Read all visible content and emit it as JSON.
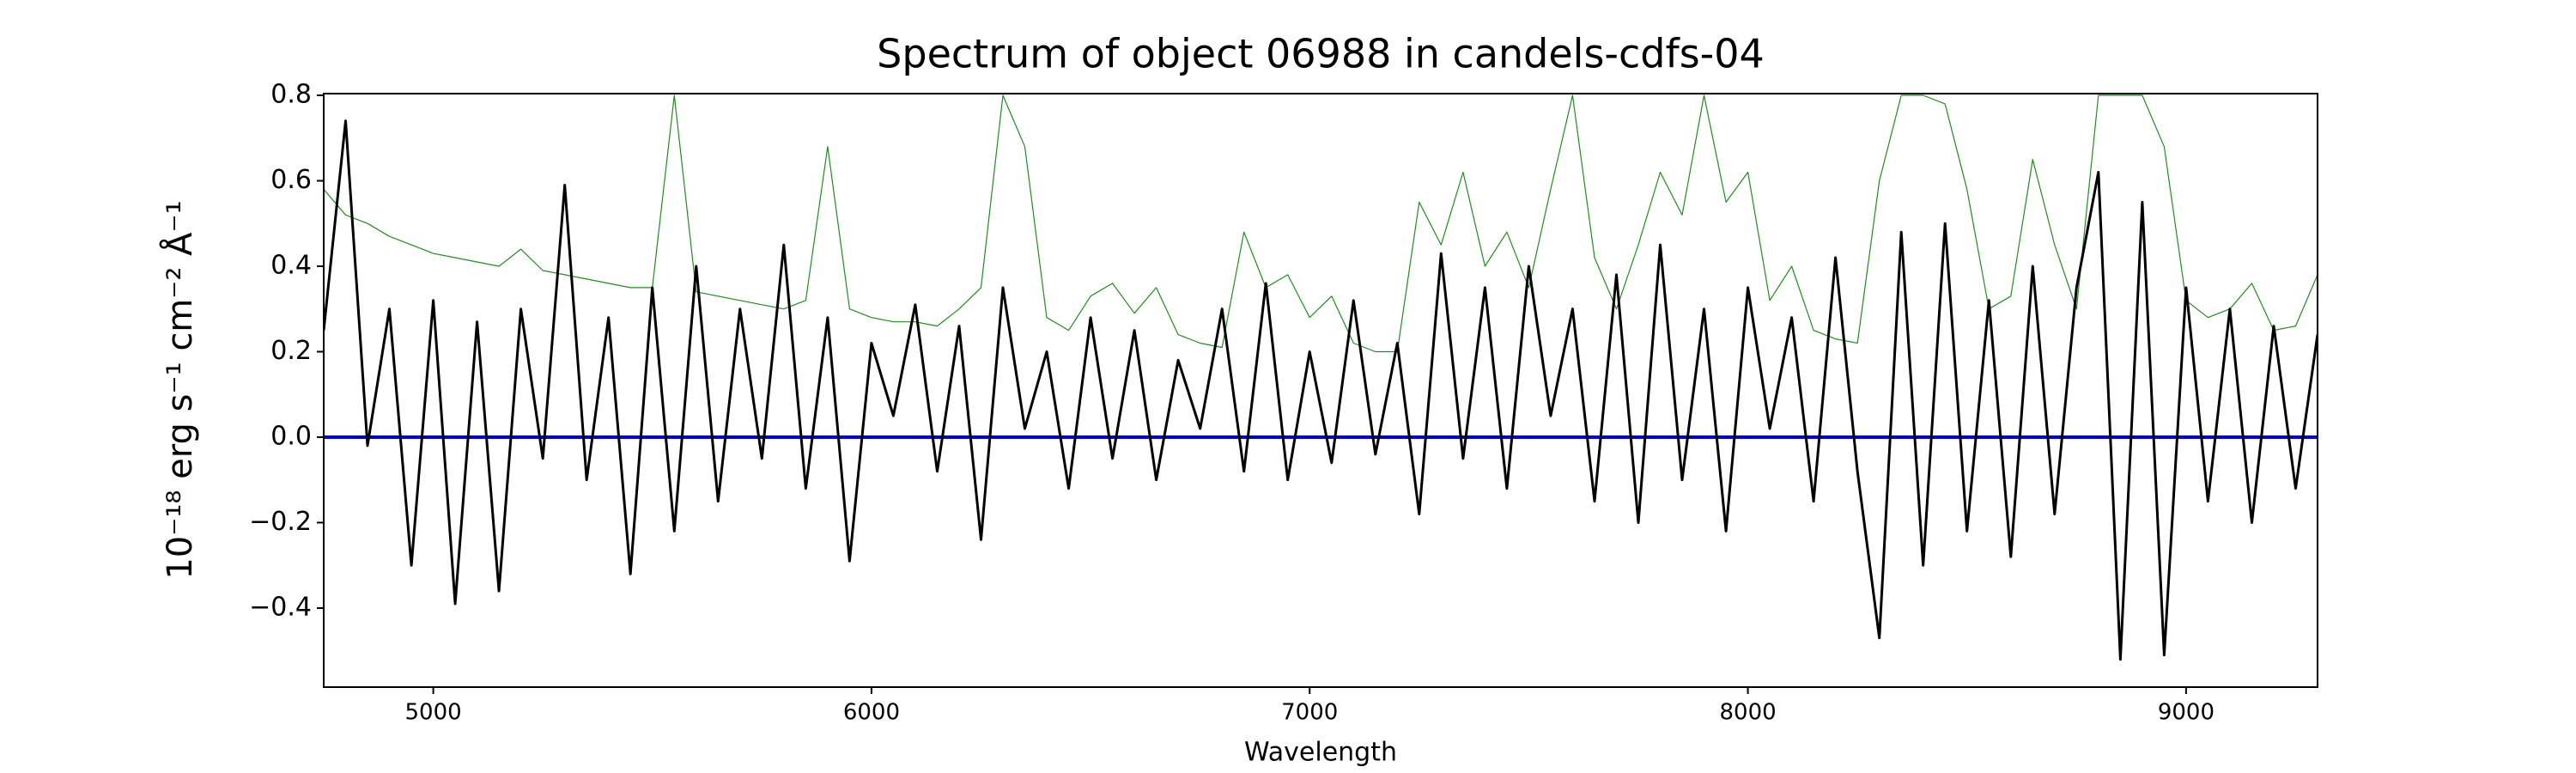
{
  "chart_data": {
    "type": "line",
    "title": "Spectrum of object 06988 in candels-cdfs-04",
    "xlabel": "Wavelength",
    "ylabel": "10⁻¹⁸ erg s⁻¹ cm⁻² Å⁻¹",
    "xlim": [
      4750,
      9300
    ],
    "ylim": [
      -0.585,
      0.804
    ],
    "xticks": [
      5000,
      6000,
      7000,
      8000,
      9000
    ],
    "yticks": [
      {
        "value": -0.4,
        "label": "−0.4"
      },
      {
        "value": -0.2,
        "label": "−0.2"
      },
      {
        "value": 0,
        "label": "0.0"
      },
      0.2,
      0.4,
      0.6,
      0.8
    ],
    "hline": 0,
    "hline_color": "#0000cc",
    "x": [
      4750,
      4800,
      4850,
      4900,
      4950,
      5000,
      5050,
      5100,
      5150,
      5200,
      5250,
      5300,
      5350,
      5400,
      5450,
      5500,
      5550,
      5600,
      5650,
      5700,
      5750,
      5800,
      5850,
      5900,
      5950,
      6000,
      6050,
      6100,
      6150,
      6200,
      6250,
      6300,
      6350,
      6400,
      6450,
      6500,
      6550,
      6600,
      6650,
      6700,
      6750,
      6800,
      6850,
      6900,
      6950,
      7000,
      7050,
      7100,
      7150,
      7200,
      7250,
      7300,
      7350,
      7400,
      7450,
      7500,
      7550,
      7600,
      7650,
      7700,
      7750,
      7800,
      7850,
      7900,
      7950,
      8000,
      8050,
      8100,
      8150,
      8200,
      8250,
      8300,
      8350,
      8400,
      8450,
      8500,
      8550,
      8600,
      8650,
      8700,
      8750,
      8800,
      8850,
      8900,
      8950,
      9000,
      9050,
      9100,
      9150,
      9200,
      9250,
      9300
    ],
    "series": [
      {
        "color": "#228b22",
        "width": 1.2,
        "values": [
          0.58,
          0.52,
          0.5,
          0.47,
          0.45,
          0.43,
          0.42,
          0.41,
          0.4,
          0.44,
          0.39,
          0.38,
          0.37,
          0.36,
          0.35,
          0.35,
          0.8,
          0.34,
          0.33,
          0.32,
          0.31,
          0.3,
          0.32,
          0.68,
          0.3,
          0.28,
          0.27,
          0.27,
          0.26,
          0.3,
          0.35,
          0.8,
          0.68,
          0.28,
          0.25,
          0.33,
          0.36,
          0.29,
          0.35,
          0.24,
          0.22,
          0.21,
          0.48,
          0.35,
          0.38,
          0.28,
          0.33,
          0.22,
          0.2,
          0.2,
          0.55,
          0.45,
          0.62,
          0.4,
          0.48,
          0.35,
          0.58,
          0.8,
          0.42,
          0.3,
          0.45,
          0.62,
          0.52,
          0.8,
          0.55,
          0.62,
          0.32,
          0.4,
          0.25,
          0.23,
          0.22,
          0.6,
          0.8,
          0.8,
          0.78,
          0.58,
          0.3,
          0.33,
          0.65,
          0.45,
          0.3,
          0.8,
          0.8,
          0.8,
          0.68,
          0.32,
          0.28,
          0.3,
          0.36,
          0.25,
          0.26,
          0.38
        ]
      },
      {
        "color": "#000000",
        "width": 3,
        "values": [
          0.25,
          0.74,
          -0.02,
          0.3,
          -0.3,
          0.32,
          -0.39,
          0.27,
          -0.36,
          0.3,
          -0.05,
          0.59,
          -0.1,
          0.28,
          -0.32,
          0.35,
          -0.22,
          0.4,
          -0.15,
          0.3,
          -0.05,
          0.45,
          -0.12,
          0.28,
          -0.29,
          0.22,
          0.05,
          0.31,
          -0.08,
          0.26,
          -0.24,
          0.35,
          0.02,
          0.2,
          -0.12,
          0.28,
          -0.05,
          0.25,
          -0.1,
          0.18,
          0.02,
          0.3,
          -0.08,
          0.36,
          -0.1,
          0.2,
          -0.06,
          0.32,
          -0.04,
          0.22,
          -0.18,
          0.43,
          -0.05,
          0.35,
          -0.12,
          0.4,
          0.05,
          0.3,
          -0.15,
          0.38,
          -0.2,
          0.45,
          -0.1,
          0.3,
          -0.22,
          0.35,
          0.02,
          0.28,
          -0.15,
          0.42,
          -0.08,
          -0.47,
          0.48,
          -0.3,
          0.5,
          -0.22,
          0.32,
          -0.28,
          0.4,
          -0.18,
          0.35,
          0.62,
          -0.52,
          0.55,
          -0.51,
          0.35,
          -0.15,
          0.3,
          -0.2,
          0.26,
          -0.12,
          0.24
        ]
      }
    ]
  }
}
